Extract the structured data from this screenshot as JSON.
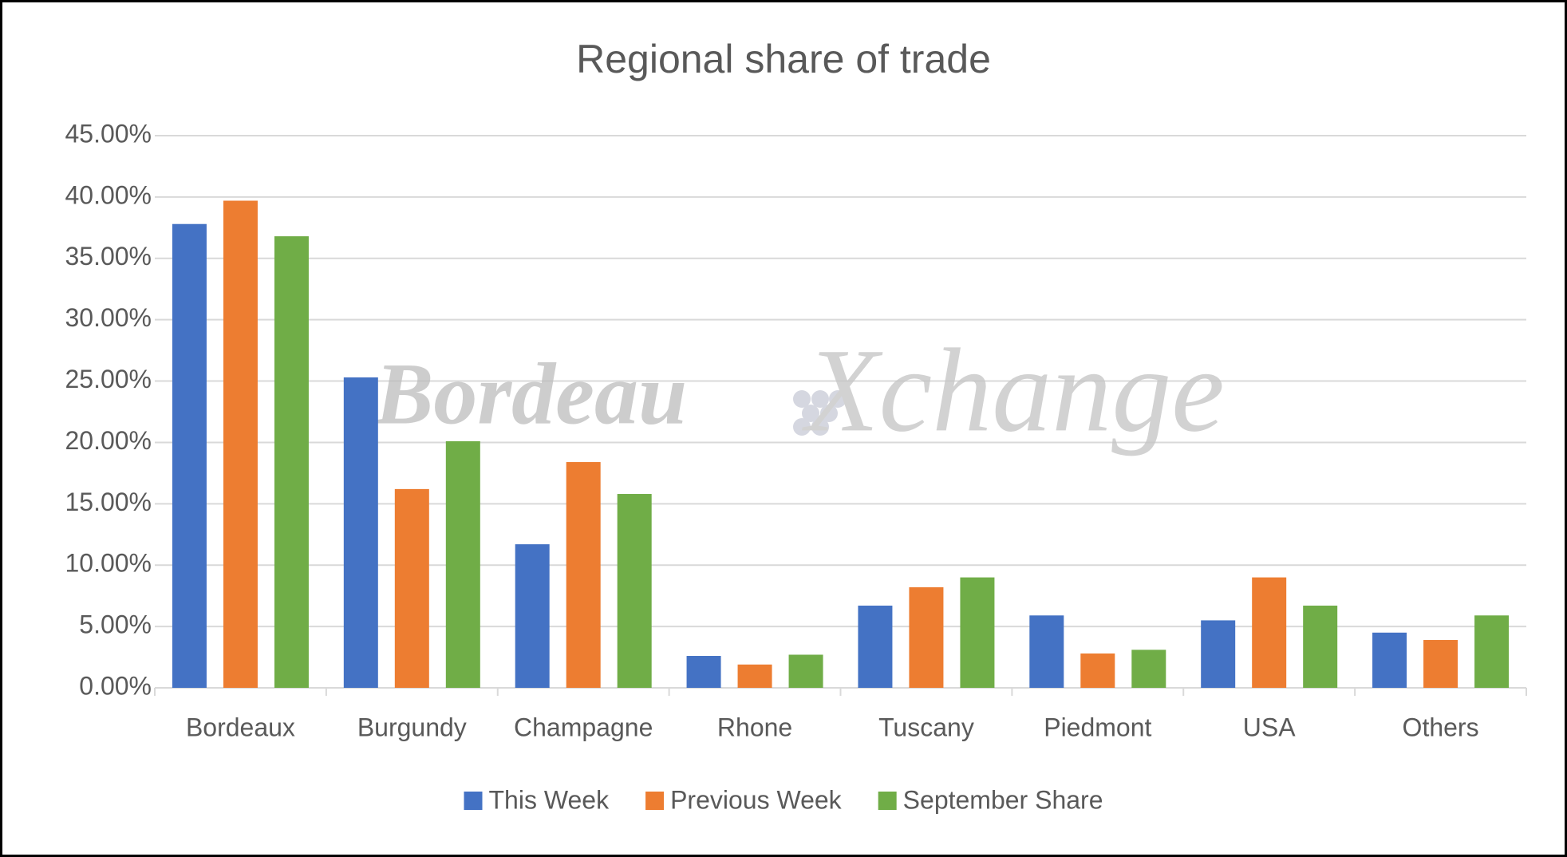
{
  "chart_data": {
    "type": "bar",
    "title": "Regional share of trade",
    "watermark": [
      "Bordeau",
      "Xchange"
    ],
    "categories": [
      "Bordeaux",
      "Burgundy",
      "Champagne",
      "Rhone",
      "Tuscany",
      "Piedmont",
      "USA",
      "Others"
    ],
    "series": [
      {
        "name": "This Week",
        "color": "#4472c4",
        "values": [
          37.8,
          25.3,
          11.7,
          2.6,
          6.7,
          5.9,
          5.5,
          4.5
        ]
      },
      {
        "name": "Previous Week",
        "color": "#ed7d31",
        "values": [
          39.7,
          16.2,
          18.4,
          1.9,
          8.2,
          2.8,
          9.0,
          3.9
        ]
      },
      {
        "name": "September Share",
        "color": "#70ad47",
        "values": [
          36.8,
          20.1,
          15.8,
          2.7,
          9.0,
          3.1,
          6.7,
          5.9
        ]
      }
    ],
    "ylim": [
      0,
      45
    ],
    "yticks": [
      {
        "value": 0,
        "label": "0.00%"
      },
      {
        "value": 5,
        "label": "5.00%"
      },
      {
        "value": 10,
        "label": "10.00%"
      },
      {
        "value": 15,
        "label": "15.00%"
      },
      {
        "value": 20,
        "label": "20.00%"
      },
      {
        "value": 25,
        "label": "25.00%"
      },
      {
        "value": 30,
        "label": "30.00%"
      },
      {
        "value": 35,
        "label": "35.00%"
      },
      {
        "value": 40,
        "label": "40.00%"
      },
      {
        "value": 45,
        "label": "45.00%"
      }
    ],
    "grid": true,
    "legend": "bottom"
  }
}
